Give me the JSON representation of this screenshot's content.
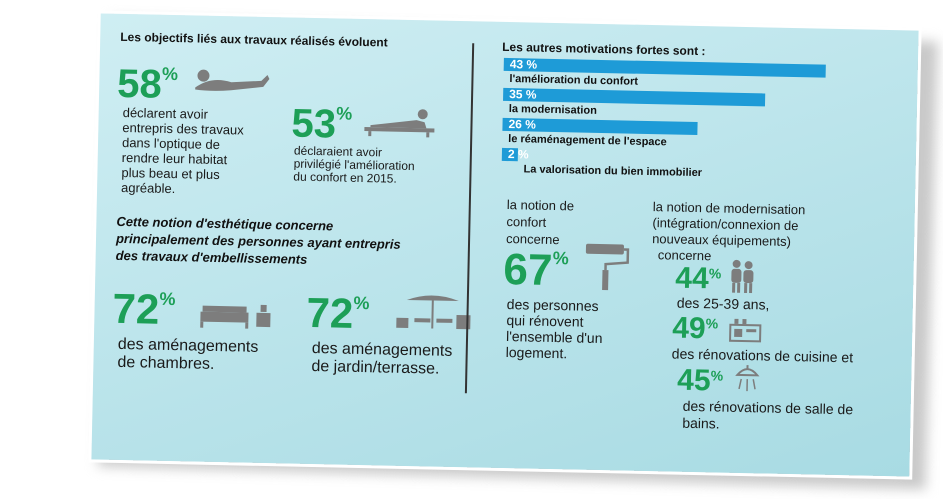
{
  "left": {
    "heading": "Les objectifs liés aux travaux réalisés évoluent",
    "stat1": {
      "value": "58",
      "pct": "%",
      "text_lines": [
        "déclarent avoir",
        "entrepris des travaux",
        "dans l'optique de",
        "rendre leur habitat",
        "plus beau et plus",
        "agréable."
      ]
    },
    "stat2": {
      "value": "53",
      "pct": "%",
      "text_lines": [
        "déclaraient avoir",
        "privilégié l'amélioration",
        "du confort en 2015."
      ]
    },
    "notion_lines": [
      "Cette notion d'esthétique concerne",
      "principalement des personnes ayant entrepris",
      "des travaux d'embellissements"
    ],
    "stat3": {
      "value": "72",
      "pct": "%",
      "text_lines": [
        "des aménagements",
        "de chambres."
      ]
    },
    "stat4": {
      "value": "72",
      "pct": "%",
      "text_lines": [
        "des aménagements",
        "de jardin/terrasse."
      ]
    }
  },
  "right": {
    "heading": "Les autres motivations fortes sont :",
    "bars": [
      {
        "pct_label": "43 %",
        "value": 43,
        "label": "l'amélioration du confort"
      },
      {
        "pct_label": "35 %",
        "value": 35,
        "label": "la modernisation"
      },
      {
        "pct_label": "26 %",
        "label": "le réaménagement de l'espace",
        "value": 26
      },
      {
        "pct_label": "2 %",
        "value": 2,
        "label": "La valorisation du bien immobilier"
      }
    ],
    "confort": {
      "intro_lines": [
        "la notion de",
        "confort",
        "concerne"
      ],
      "value": "67",
      "pct": "%",
      "text_lines": [
        "des personnes",
        "qui rénovent",
        "l'ensemble d'un",
        "logement."
      ]
    },
    "modern": {
      "intro_lines": [
        "la notion de modernisation",
        "(intégration/connexion de",
        "nouveaux équipements)",
        "concerne"
      ],
      "s1": {
        "value": "44",
        "pct": "%",
        "text": "des 25-39 ans,"
      },
      "s2": {
        "value": "49",
        "pct": "%",
        "text": "des rénovations de cuisine et"
      },
      "s3": {
        "value": "45",
        "pct": "%",
        "text_lines": [
          "des rénovations de salle de",
          "bains."
        ]
      }
    }
  },
  "colors": {
    "accent_green": "#1d9f57",
    "bar_blue": "#1e9bd7",
    "background": "#bfe6ec"
  },
  "icons": [
    "reclining-person-icon",
    "lounging-person-icon",
    "bed-icon",
    "garden-furniture-icon",
    "paint-roller-icon",
    "couple-icon",
    "kitchen-icon",
    "shower-icon"
  ]
}
